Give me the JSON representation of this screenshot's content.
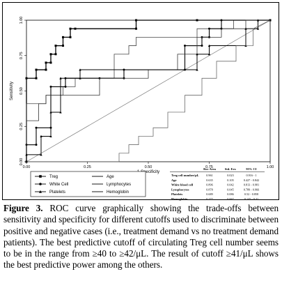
{
  "figure": {
    "chart_data": {
      "type": "line",
      "xlabel": "1-Specificity",
      "ylabel": "Sensitivity",
      "xlim": [
        0,
        1
      ],
      "ylim": [
        0,
        1
      ],
      "xticks": [
        "0.00",
        "0.25",
        "0.50",
        "0.75",
        "1.00"
      ],
      "yticks": [
        "0.00",
        "0.25",
        "0.50",
        "0.75",
        "1.00"
      ],
      "grid": false,
      "reference_line": [
        [
          0,
          0
        ],
        [
          1,
          1
        ]
      ],
      "series": [
        {
          "name": "Treg",
          "marker": "square",
          "points": [
            [
              0,
              0
            ],
            [
              0,
              0.59
            ],
            [
              0.04,
              0.59
            ],
            [
              0.04,
              0.65
            ],
            [
              0.08,
              0.65
            ],
            [
              0.08,
              0.7
            ],
            [
              0.1,
              0.7
            ],
            [
              0.1,
              0.76
            ],
            [
              0.12,
              0.76
            ],
            [
              0.12,
              0.82
            ],
            [
              0.15,
              0.82
            ],
            [
              0.15,
              0.88
            ],
            [
              0.18,
              0.88
            ],
            [
              0.18,
              0.94
            ],
            [
              0.2,
              0.94
            ],
            [
              0.45,
              0.94
            ],
            [
              0.45,
              1
            ],
            [
              0.7,
              1
            ],
            [
              1,
              1
            ]
          ]
        },
        {
          "name": "Age",
          "marker": "none",
          "points": [
            [
              0,
              0
            ],
            [
              0,
              0.41
            ],
            [
              0.08,
              0.41
            ],
            [
              0.08,
              0.47
            ],
            [
              0.15,
              0.47
            ],
            [
              0.15,
              0.53
            ],
            [
              0.2,
              0.53
            ],
            [
              0.2,
              0.59
            ],
            [
              0.36,
              0.59
            ],
            [
              0.36,
              0.76
            ],
            [
              0.42,
              0.76
            ],
            [
              0.42,
              0.82
            ],
            [
              0.45,
              0.82
            ],
            [
              0.45,
              0.88
            ],
            [
              0.7,
              0.88
            ],
            [
              0.7,
              0.94
            ],
            [
              0.85,
              0.94
            ],
            [
              0.85,
              1
            ],
            [
              1,
              1
            ]
          ]
        },
        {
          "name": "White Cell",
          "marker": "circle",
          "points": [
            [
              0,
              0
            ],
            [
              0,
              0.12
            ],
            [
              0.04,
              0.12
            ],
            [
              0.04,
              0.24
            ],
            [
              0.1,
              0.24
            ],
            [
              0.1,
              0.53
            ],
            [
              0.16,
              0.53
            ],
            [
              0.16,
              0.59
            ],
            [
              0.3,
              0.59
            ],
            [
              0.4,
              0.59
            ],
            [
              0.4,
              0.65
            ],
            [
              0.65,
              0.65
            ],
            [
              0.65,
              0.82
            ],
            [
              0.72,
              0.82
            ],
            [
              0.72,
              0.88
            ],
            [
              0.75,
              0.88
            ],
            [
              0.75,
              0.94
            ],
            [
              0.8,
              0.94
            ],
            [
              0.8,
              1
            ],
            [
              1,
              1
            ]
          ]
        },
        {
          "name": "Lymphocytes",
          "marker": "none",
          "points": [
            [
              0,
              0
            ],
            [
              0,
              0.29
            ],
            [
              0.05,
              0.29
            ],
            [
              0.05,
              0.41
            ],
            [
              0.08,
              0.41
            ],
            [
              0.08,
              0.47
            ],
            [
              0.3,
              0.47
            ],
            [
              0.3,
              0.59
            ],
            [
              0.5,
              0.59
            ],
            [
              0.5,
              0.65
            ],
            [
              0.62,
              0.65
            ],
            [
              0.62,
              0.76
            ],
            [
              0.7,
              0.76
            ],
            [
              0.7,
              0.88
            ],
            [
              0.8,
              0.88
            ],
            [
              0.8,
              0.94
            ],
            [
              0.9,
              0.94
            ],
            [
              0.9,
              1
            ],
            [
              1,
              1
            ]
          ]
        },
        {
          "name": "Platelets",
          "marker": "triangle",
          "points": [
            [
              0,
              0
            ],
            [
              0,
              0.05
            ],
            [
              0.06,
              0.05
            ],
            [
              0.06,
              0.18
            ],
            [
              0.1,
              0.18
            ],
            [
              0.1,
              0.35
            ],
            [
              0.14,
              0.35
            ],
            [
              0.14,
              0.59
            ],
            [
              0.22,
              0.59
            ],
            [
              0.22,
              0.65
            ],
            [
              0.7,
              0.65
            ],
            [
              0.7,
              0.76
            ],
            [
              0.75,
              0.76
            ],
            [
              0.75,
              0.82
            ],
            [
              0.9,
              0.82
            ],
            [
              0.9,
              0.94
            ],
            [
              0.95,
              0.94
            ],
            [
              0.95,
              1
            ],
            [
              1,
              1
            ]
          ]
        },
        {
          "name": "Hemoglobin",
          "marker": "none",
          "points": [
            [
              0,
              0
            ],
            [
              0.38,
              0
            ],
            [
              0.38,
              0.06
            ],
            [
              0.42,
              0.06
            ],
            [
              0.42,
              0.12
            ],
            [
              0.46,
              0.12
            ],
            [
              0.46,
              0.18
            ],
            [
              0.52,
              0.18
            ],
            [
              0.52,
              0.24
            ],
            [
              0.58,
              0.24
            ],
            [
              0.58,
              0.35
            ],
            [
              0.65,
              0.35
            ],
            [
              0.65,
              0.47
            ],
            [
              0.72,
              0.47
            ],
            [
              0.72,
              0.59
            ],
            [
              0.78,
              0.59
            ],
            [
              0.78,
              0.71
            ],
            [
              0.86,
              0.71
            ],
            [
              0.86,
              0.82
            ],
            [
              0.93,
              0.82
            ],
            [
              0.93,
              0.94
            ],
            [
              1,
              1
            ]
          ]
        }
      ],
      "legend": [
        {
          "label": "Treg",
          "marker": "square"
        },
        {
          "label": "Age",
          "marker": "none"
        },
        {
          "label": "White Cell",
          "marker": "circle"
        },
        {
          "label": "Lymphocytes",
          "marker": "none"
        },
        {
          "label": "Platelets",
          "marker": "triangle"
        },
        {
          "label": "Hemoglobin",
          "marker": "none"
        }
      ],
      "legend_placement": "bottom-left"
    },
    "auc_table": {
      "headers": [
        "",
        "Roc Area",
        "Std. Err.",
        "95% CI"
      ],
      "rows": [
        [
          "Treg cell number/μL",
          "0.961",
          "0.023",
          "0.916 - 1"
        ],
        [
          "Age",
          "0.635",
          "0.105",
          "0.427 - 0.842"
        ],
        [
          "White blood cell",
          "0.896",
          "0.042",
          "0.813 - 0.981"
        ],
        [
          "Lymphocytes",
          "0.878",
          "0.045",
          "0.789 - 0.966"
        ],
        [
          "Platelets",
          "0.689",
          "0.086",
          "0.52 - 0.858"
        ],
        [
          "Hemoglobin",
          "0.277",
          "0.067",
          "0.145 - 0.41"
        ]
      ]
    }
  },
  "caption": {
    "label": "Figure 3.",
    "text": " ROC curve graphically showing the trade-offs between sensitivity and specificity for different cutoffs used to discriminate between positive and negative cases (i.e., treatment demand vs no treatment demand patients). The best predictive cutoff of circulating Treg cell number seems to be in the range from ≥40 to ≥42/μL. The result of cutoff ≥41/μL shows the best predictive power among the others."
  }
}
